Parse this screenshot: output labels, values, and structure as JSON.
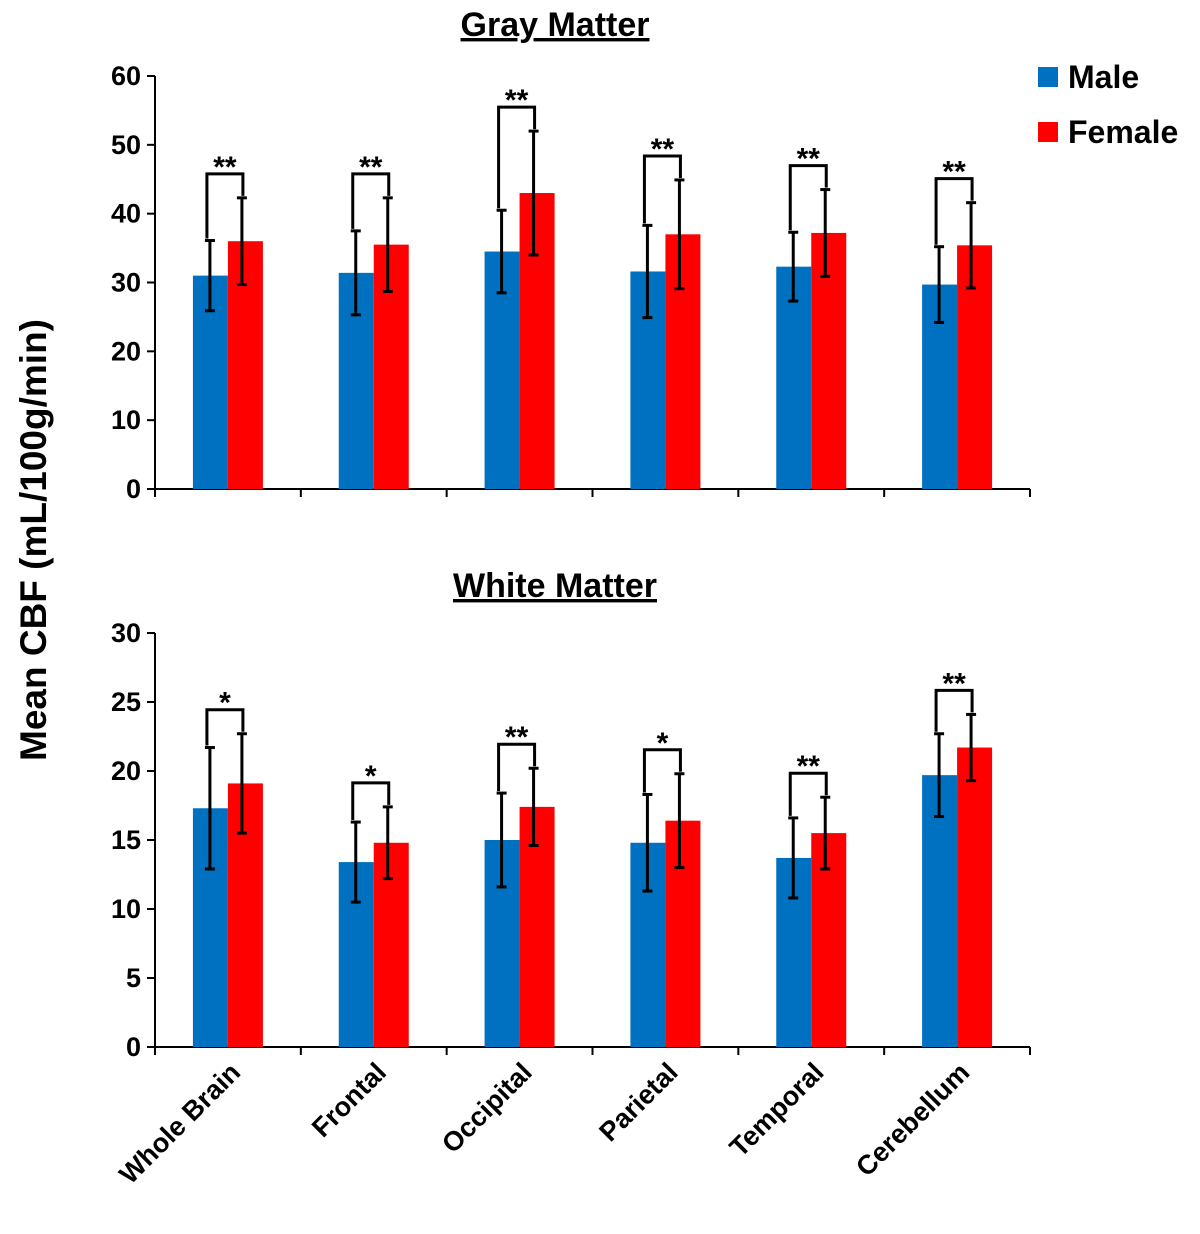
{
  "chart_data": {
    "type": "bar",
    "ylabel": "Mean CBF (mL/100g/min)",
    "categories": [
      "Whole Brain",
      "Frontal",
      "Occipital",
      "Parietal",
      "Temporal",
      "Cerebellum"
    ],
    "legend": {
      "placement": "top-right",
      "entries": [
        {
          "name": "Male",
          "color": "#0070C0"
        },
        {
          "name": "Female",
          "color": "#FF0000"
        }
      ]
    },
    "panels": [
      {
        "title": "Gray Matter",
        "ylim": [
          0,
          60
        ],
        "yticks": [
          0,
          10,
          20,
          30,
          40,
          50,
          60
        ],
        "series": [
          {
            "name": "Male",
            "color": "#0070C0",
            "values": [
              31.0,
              31.4,
              34.5,
              31.6,
              32.3,
              29.7
            ],
            "errors": [
              5.1,
              6.1,
              6.0,
              6.7,
              5.0,
              5.5
            ]
          },
          {
            "name": "Female",
            "color": "#FF0000",
            "values": [
              36.0,
              35.5,
              43.0,
              37.0,
              37.2,
              35.4
            ],
            "errors": [
              6.3,
              6.8,
              9.0,
              7.9,
              6.3,
              6.2
            ]
          }
        ],
        "significance": [
          "**",
          "**",
          "**",
          "**",
          "**",
          "**"
        ]
      },
      {
        "title": "White Matter",
        "ylim": [
          0,
          30
        ],
        "yticks": [
          0,
          5,
          10,
          15,
          20,
          25,
          30
        ],
        "series": [
          {
            "name": "Male",
            "color": "#0070C0",
            "values": [
              17.3,
              13.4,
              15.0,
              14.8,
              13.7,
              19.7
            ],
            "errors": [
              4.4,
              2.9,
              3.4,
              3.5,
              2.9,
              3.0
            ]
          },
          {
            "name": "Female",
            "color": "#FF0000",
            "values": [
              19.1,
              14.8,
              17.4,
              16.4,
              15.5,
              21.7
            ],
            "errors": [
              3.6,
              2.6,
              2.8,
              3.4,
              2.6,
              2.4
            ]
          }
        ],
        "significance": [
          "*",
          "*",
          "**",
          "*",
          "**",
          "**"
        ]
      }
    ]
  }
}
